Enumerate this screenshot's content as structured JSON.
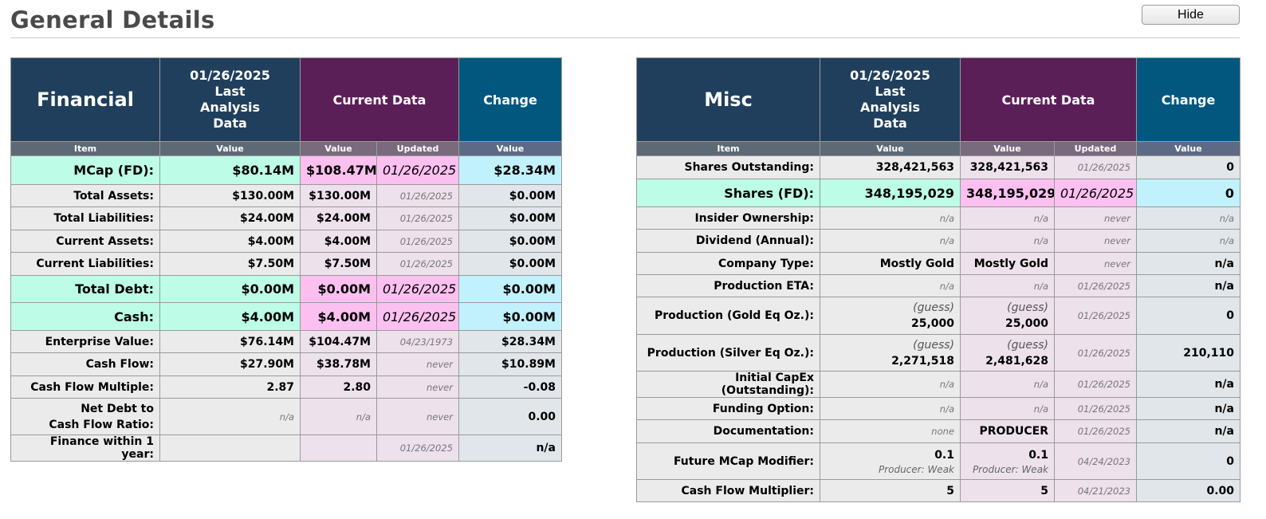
{
  "header": {
    "title": "General Details",
    "hide_label": "Hide"
  },
  "financial": {
    "title": "Financial",
    "last_date": "01/26/2025",
    "last_l1": "Last",
    "last_l2": "Analysis",
    "last_l3": "Data",
    "current_label": "Current Data",
    "change_label": "Change",
    "sub": {
      "item": "Item",
      "value": "Value",
      "updated": "Updated"
    },
    "rows": [
      {
        "item": "MCap (FD):",
        "last": "$80.14M",
        "cur": "$108.47M",
        "upd": "01/26/2025",
        "chg": "$28.34M"
      },
      {
        "item": "Total Assets:",
        "last": "$130.00M",
        "cur": "$130.00M",
        "upd": "01/26/2025",
        "chg": "$0.00M"
      },
      {
        "item": "Total Liabilities:",
        "last": "$24.00M",
        "cur": "$24.00M",
        "upd": "01/26/2025",
        "chg": "$0.00M"
      },
      {
        "item": "Current Assets:",
        "last": "$4.00M",
        "cur": "$4.00M",
        "upd": "01/26/2025",
        "chg": "$0.00M"
      },
      {
        "item": "Current Liabilities:",
        "last": "$7.50M",
        "cur": "$7.50M",
        "upd": "01/26/2025",
        "chg": "$0.00M"
      },
      {
        "item": "Total Debt:",
        "last": "$0.00M",
        "cur": "$0.00M",
        "upd": "01/26/2025",
        "chg": "$0.00M"
      },
      {
        "item": "Cash:",
        "last": "$4.00M",
        "cur": "$4.00M",
        "upd": "01/26/2025",
        "chg": "$0.00M"
      },
      {
        "item": "Enterprise Value:",
        "last": "$76.14M",
        "cur": "$104.47M",
        "upd": "04/23/1973",
        "chg": "$28.34M"
      },
      {
        "item": "Cash Flow:",
        "last": "$27.90M",
        "cur": "$38.78M",
        "upd": "never",
        "chg": "$10.89M"
      },
      {
        "item": "Cash Flow Multiple:",
        "last": "2.87",
        "cur": "2.80",
        "upd": "never",
        "chg": "-0.08"
      },
      {
        "item_l1": "Net Debt to",
        "item_l2": "Cash Flow Ratio:",
        "last": "n/a",
        "cur": "n/a",
        "upd": "never",
        "chg": "0.00"
      },
      {
        "item": "Finance within 1 year:",
        "last": "",
        "cur": "",
        "upd": "01/26/2025",
        "chg": "n/a"
      }
    ]
  },
  "misc": {
    "title": "Misc",
    "last_date": "01/26/2025",
    "last_l1": "Last",
    "last_l2": "Analysis",
    "last_l3": "Data",
    "current_label": "Current Data",
    "change_label": "Change",
    "sub": {
      "item": "Item",
      "value": "Value",
      "updated": "Updated"
    },
    "rows": [
      {
        "item": "Shares Outstanding:",
        "last": "328,421,563",
        "cur": "328,421,563",
        "upd": "01/26/2025",
        "chg": "0"
      },
      {
        "item": "Shares (FD):",
        "last": "348,195,029",
        "cur": "348,195,029",
        "upd": "01/26/2025",
        "chg": "0"
      },
      {
        "item": "Insider Ownership:",
        "last": "n/a",
        "cur": "n/a",
        "upd": "never",
        "chg": "n/a"
      },
      {
        "item": "Dividend (Annual):",
        "last": "n/a",
        "cur": "n/a",
        "upd": "never",
        "chg": "n/a"
      },
      {
        "item": "Company Type:",
        "last": "Mostly Gold",
        "cur": "Mostly Gold",
        "upd": "never",
        "chg": "n/a"
      },
      {
        "item": "Production ETA:",
        "last": "n/a",
        "cur": "n/a",
        "upd": "01/26/2025",
        "chg": "n/a"
      },
      {
        "item": "Production (Gold Eq Oz.):",
        "last_note": "(guess)",
        "last": "25,000",
        "cur_note": "(guess)",
        "cur": "25,000",
        "upd": "01/26/2025",
        "chg": "0"
      },
      {
        "item": "Production (Silver Eq Oz.):",
        "last_note": "(guess)",
        "last": "2,271,518",
        "cur_note": "(guess)",
        "cur": "2,481,628",
        "upd": "01/26/2025",
        "chg": "210,110"
      },
      {
        "item": "Initial CapEx (Outstanding):",
        "last": "n/a",
        "cur": "n/a",
        "upd": "01/26/2025",
        "chg": "n/a"
      },
      {
        "item": "Funding Option:",
        "last": "n/a",
        "cur": "n/a",
        "upd": "01/26/2025",
        "chg": "n/a"
      },
      {
        "item": "Documentation:",
        "last": "none",
        "cur": "PRODUCER",
        "upd": "01/26/2025",
        "chg": "n/a"
      },
      {
        "item": "Future MCap Modifier:",
        "last": "0.1",
        "last_note": "Producer: Weak",
        "cur": "0.1",
        "cur_note": "Producer: Weak",
        "upd": "04/24/2023",
        "chg": "0"
      },
      {
        "item": "Cash Flow Multiplier:",
        "last": "5",
        "cur": "5",
        "upd": "04/21/2023",
        "chg": "0.00"
      }
    ]
  }
}
